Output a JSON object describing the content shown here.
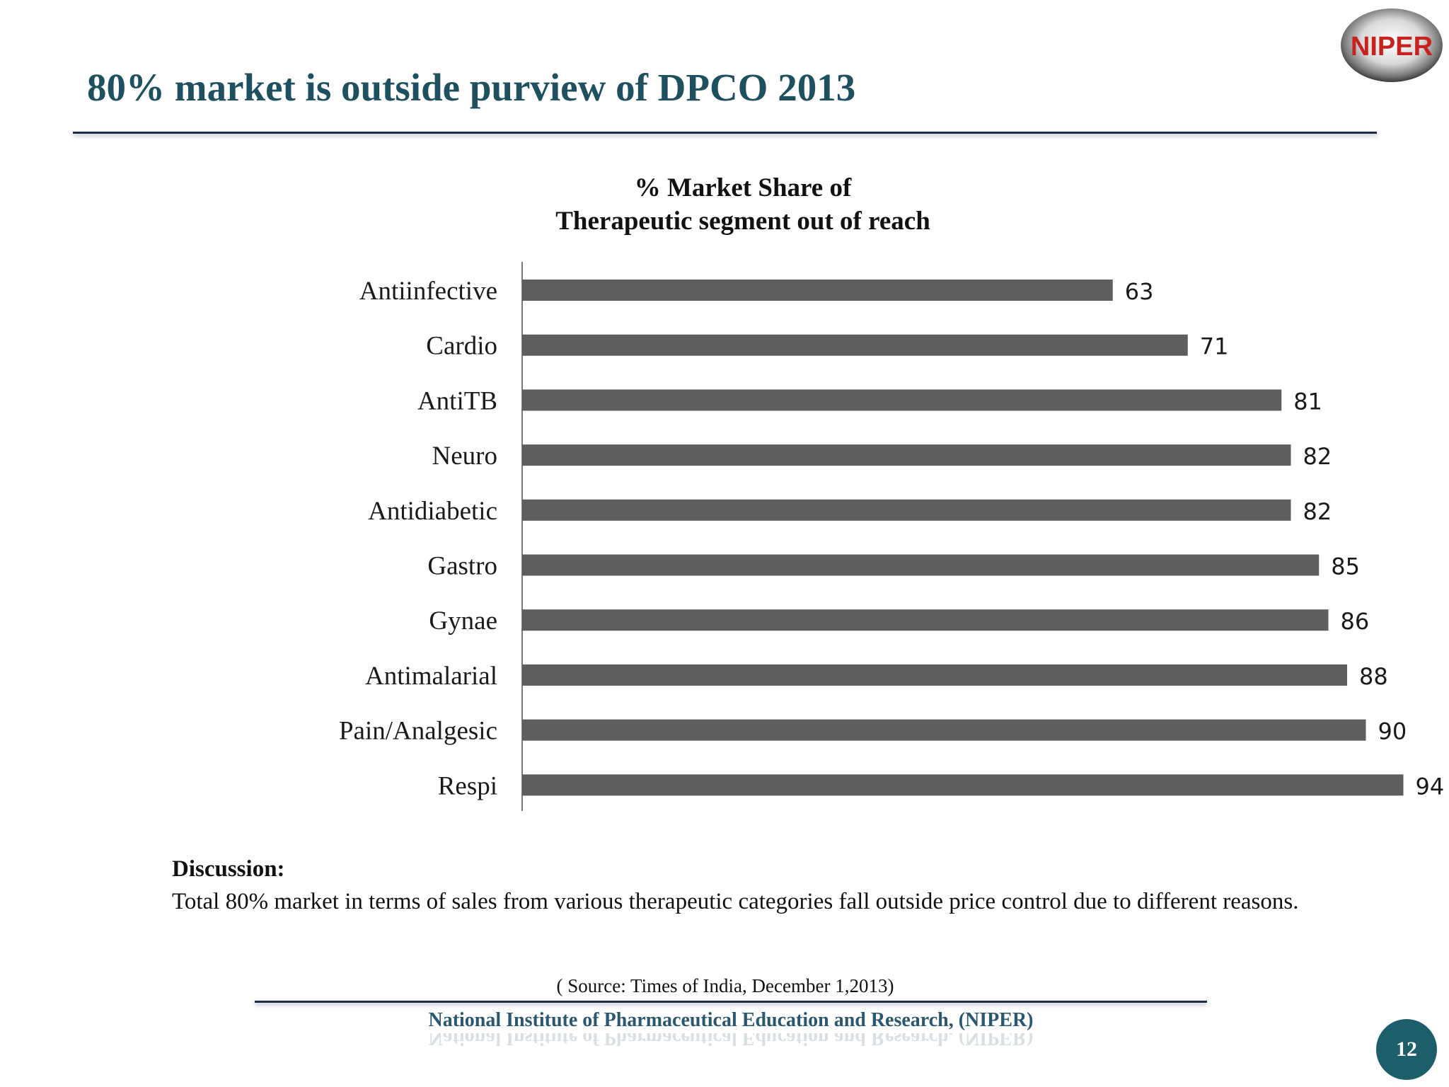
{
  "slide": {
    "title": "80% market is outside purview of DPCO 2013",
    "logo_text": "NIPER",
    "page_number": "12"
  },
  "chart_data": {
    "type": "bar",
    "orientation": "horizontal",
    "title_line1": "%  Market Share of",
    "title_line2": "Therapeutic segment out of reach",
    "categories": [
      "Antiinfective",
      "Cardio",
      "AntiTB",
      "Neuro",
      "Antidiabetic",
      "Gastro",
      "Gynae",
      "Antimalarial",
      "Pain/Analgesic",
      "Respi"
    ],
    "values": [
      63,
      71,
      81,
      82,
      82,
      85,
      86,
      88,
      90,
      94
    ],
    "xlim": [
      0,
      100
    ],
    "bar_color": "#5f5d5f",
    "grid": false,
    "legend": "none",
    "data_labels": true
  },
  "discussion": {
    "heading": "Discussion:",
    "text": "Total 80% market in terms of sales from various therapeutic categories fall outside price control due to different reasons."
  },
  "source": "( Source: Times of India, December 1,2013)",
  "footer": {
    "organization": "National Institute of Pharmaceutical Education and Research, (NIPER)"
  }
}
